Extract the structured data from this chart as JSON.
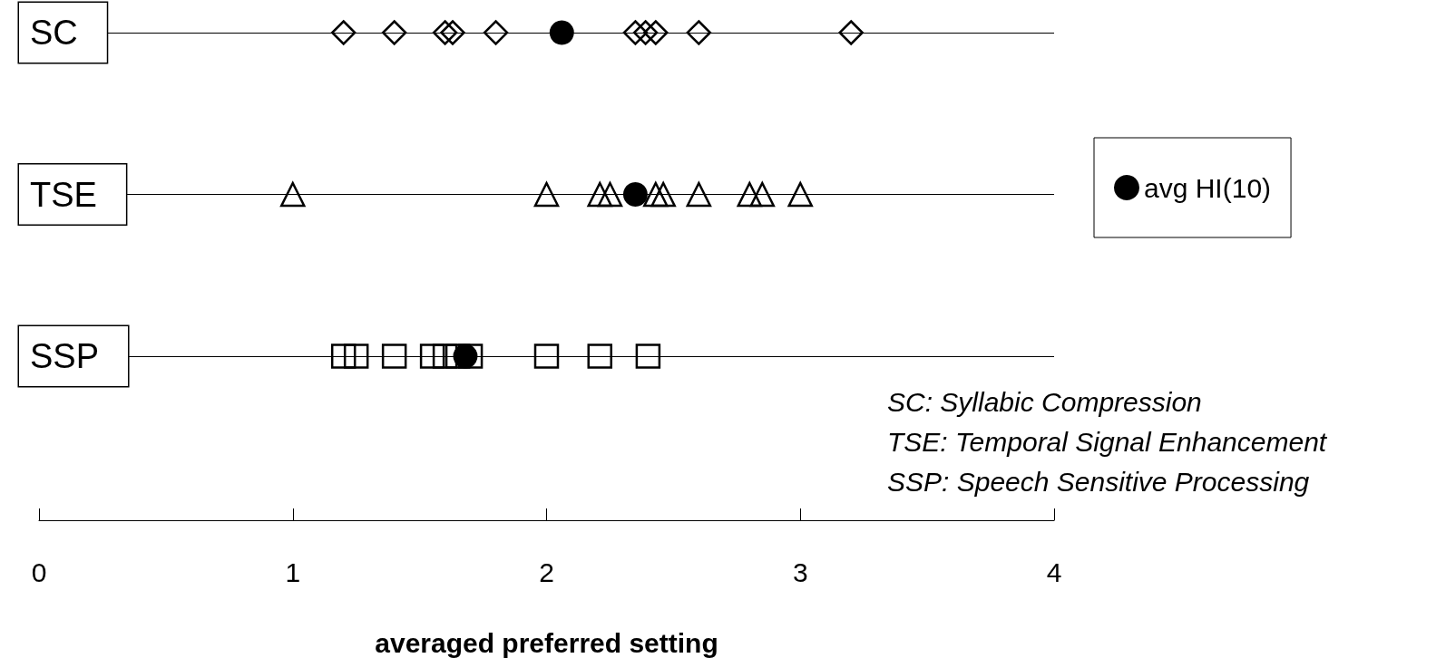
{
  "chart_data": {
    "type": "scatter",
    "orientation": "horizontal",
    "xlabel": "averaged preferred setting",
    "categories": [
      "SC",
      "TSE",
      "SSP"
    ],
    "series": [
      {
        "color": "#000000",
        "marker": "diamond",
        "x": [
          "SC",
          "SC",
          "SC",
          "SC",
          "SC",
          "SC",
          "SC",
          "SC",
          "SC",
          "SC"
        ],
        "values": [
          1.2,
          1.4,
          1.6,
          1.63,
          1.8,
          2.35,
          2.39,
          2.43,
          2.6,
          3.2
        ]
      },
      {
        "color": "#000000",
        "marker": "triangle",
        "x": [
          "TSE",
          "TSE",
          "TSE",
          "TSE",
          "TSE",
          "TSE",
          "TSE",
          "TSE",
          "TSE",
          "TSE"
        ],
        "values": [
          1.0,
          2.0,
          2.21,
          2.25,
          2.43,
          2.46,
          2.6,
          2.8,
          2.85,
          3.0
        ]
      },
      {
        "color": "#000000",
        "marker": "square",
        "x": [
          "SSP",
          "SSP",
          "SSP",
          "SSP",
          "SSP",
          "SSP",
          "SSP",
          "SSP",
          "SSP",
          "SSP"
        ],
        "values": [
          1.2,
          1.25,
          1.4,
          1.55,
          1.6,
          1.65,
          1.7,
          2.0,
          2.21,
          2.4
        ]
      },
      {
        "name": "avg HI(10)",
        "color": "#000000",
        "marker": "circle",
        "x": [
          "SC",
          "TSE",
          "SSP"
        ],
        "values": [
          2.06,
          2.35,
          1.68
        ]
      }
    ],
    "xlim": [
      0,
      4
    ],
    "xticks": [
      0,
      1,
      2,
      3,
      4
    ],
    "grid": "y",
    "legend": "right",
    "annotations": [
      "SC: Syllabic Compression",
      "TSE: Temporal Signal Enhancement",
      "SSP: Speech Sensitive Processing"
    ]
  }
}
